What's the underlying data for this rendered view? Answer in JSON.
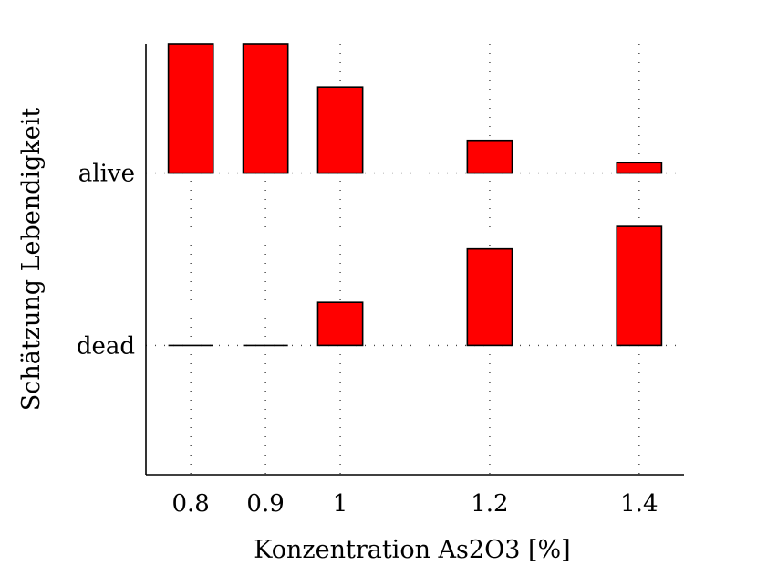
{
  "chart_data": {
    "type": "bar",
    "orientation": "pseudo-violin bar plot (bars rising above each category baseline)",
    "xlabel": "Konzentration As2O3 [%]",
    "ylabel": "Schätzung Lebendigkeit",
    "x_ticks": [
      "0.8",
      "0.9",
      "1",
      "1.2",
      "1.4"
    ],
    "x_values": [
      0.8,
      0.9,
      1.0,
      1.2,
      1.4
    ],
    "xlim": [
      0.74,
      1.46
    ],
    "y_categories": [
      "dead",
      "alive"
    ],
    "y_category_positions": [
      0,
      1
    ],
    "ylim": [
      -0.75,
      1.75
    ],
    "bar_color": "#ff0000",
    "series": [
      {
        "name": "alive",
        "baseline": 1,
        "values": [
          0.75,
          0.75,
          0.5,
          0.19,
          0.06
        ]
      },
      {
        "name": "dead",
        "baseline": 0,
        "values": [
          0.0,
          0.0,
          0.25,
          0.56,
          0.69
        ]
      }
    ],
    "grid": true
  }
}
